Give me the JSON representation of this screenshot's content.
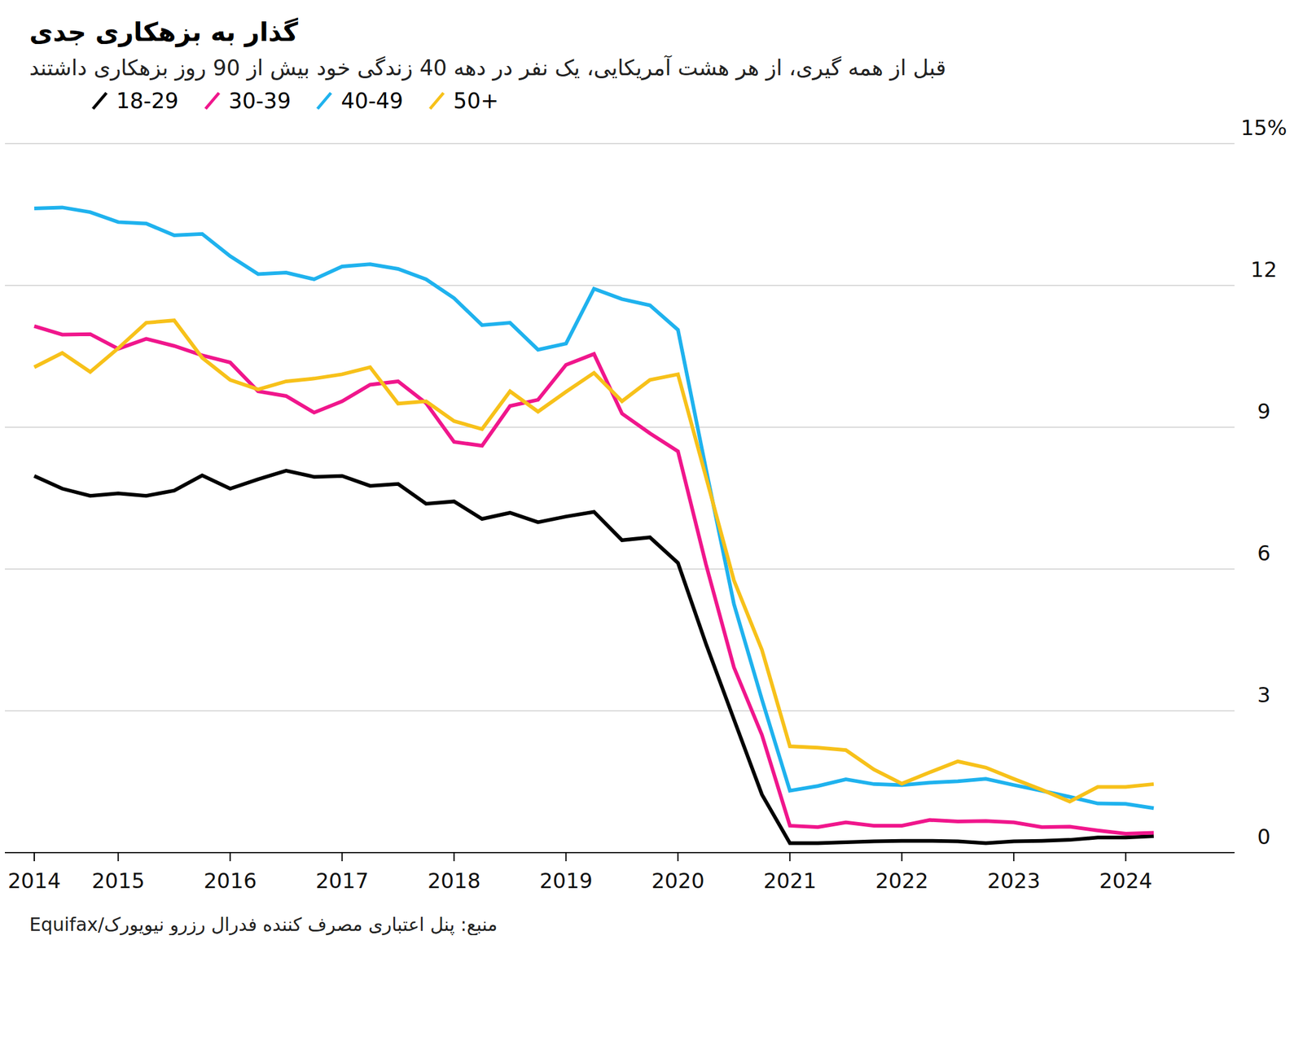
{
  "chart_data": {
    "type": "line",
    "title": "گذار به بزهکاری جدی",
    "subtitle": "قبل از همه گیری، از هر هشت آمریکایی، یک نفر در دهه 40 زندگی خود بیش از 90 روز بزهکاری داشتند",
    "source": "منبع: پنل اعتباری مصرف کننده فدرال رزرو نیویورک/Equifax",
    "categories": [
      "2014",
      null,
      null,
      "2015",
      null,
      null,
      null,
      "2016",
      null,
      null,
      null,
      "2017",
      null,
      null,
      null,
      "2018",
      null,
      null,
      null,
      "2019",
      null,
      null,
      null,
      "2020",
      null,
      null,
      null,
      "2021",
      null,
      null,
      null,
      "2022",
      null,
      null,
      null,
      "2023",
      null,
      null,
      null,
      "2024",
      null
    ],
    "series": [
      {
        "name": "18-29",
        "color": "#000000",
        "values": [
          7.97,
          7.7,
          7.55,
          7.6,
          7.55,
          7.66,
          7.98,
          7.7,
          7.9,
          8.08,
          7.95,
          7.97,
          7.76,
          7.8,
          7.38,
          7.43,
          7.06,
          7.19,
          6.99,
          7.11,
          7.21,
          6.61,
          6.67,
          6.13,
          4.42,
          2.82,
          1.23,
          0.2,
          0.2,
          0.22,
          0.24,
          0.25,
          0.25,
          0.24,
          0.2,
          0.24,
          0.25,
          0.27,
          0.32,
          0.32,
          0.35
        ]
      },
      {
        "name": "30-39",
        "color": "#f0168c",
        "values": [
          11.14,
          10.96,
          10.97,
          10.66,
          10.87,
          10.72,
          10.52,
          10.37,
          9.76,
          9.66,
          9.31,
          9.55,
          9.9,
          9.97,
          9.51,
          8.69,
          8.61,
          9.45,
          9.58,
          10.32,
          10.55,
          9.29,
          8.87,
          8.49,
          6.1,
          3.92,
          2.49,
          0.57,
          0.54,
          0.64,
          0.57,
          0.57,
          0.69,
          0.66,
          0.67,
          0.64,
          0.54,
          0.55,
          0.47,
          0.4,
          0.42
        ]
      },
      {
        "name": "40-49",
        "color": "#1fb2ee",
        "values": [
          13.63,
          13.65,
          13.55,
          13.34,
          13.31,
          13.06,
          13.09,
          12.62,
          12.24,
          12.27,
          12.13,
          12.4,
          12.45,
          12.35,
          12.13,
          11.73,
          11.16,
          11.21,
          10.64,
          10.77,
          11.93,
          11.71,
          11.58,
          11.06,
          8.12,
          5.26,
          3.24,
          1.31,
          1.41,
          1.55,
          1.45,
          1.43,
          1.48,
          1.51,
          1.56,
          1.43,
          1.31,
          1.18,
          1.04,
          1.03,
          0.94
        ]
      },
      {
        "name": "50+",
        "color": "#f7c11a",
        "values": [
          10.27,
          10.57,
          10.17,
          10.67,
          11.21,
          11.26,
          10.47,
          10.0,
          9.8,
          9.97,
          10.03,
          10.12,
          10.27,
          9.5,
          9.55,
          9.13,
          8.96,
          9.76,
          9.33,
          9.75,
          10.15,
          9.55,
          10.0,
          10.12,
          7.95,
          5.76,
          4.29,
          2.25,
          2.22,
          2.17,
          1.76,
          1.46,
          1.7,
          1.93,
          1.8,
          1.56,
          1.33,
          1.08,
          1.39,
          1.39,
          1.45
        ]
      }
    ],
    "ylim": [
      0,
      15
    ],
    "yticks": [
      0,
      3,
      6,
      9,
      12,
      {
        "value": 15,
        "label": "15%"
      }
    ],
    "grid": true
  }
}
